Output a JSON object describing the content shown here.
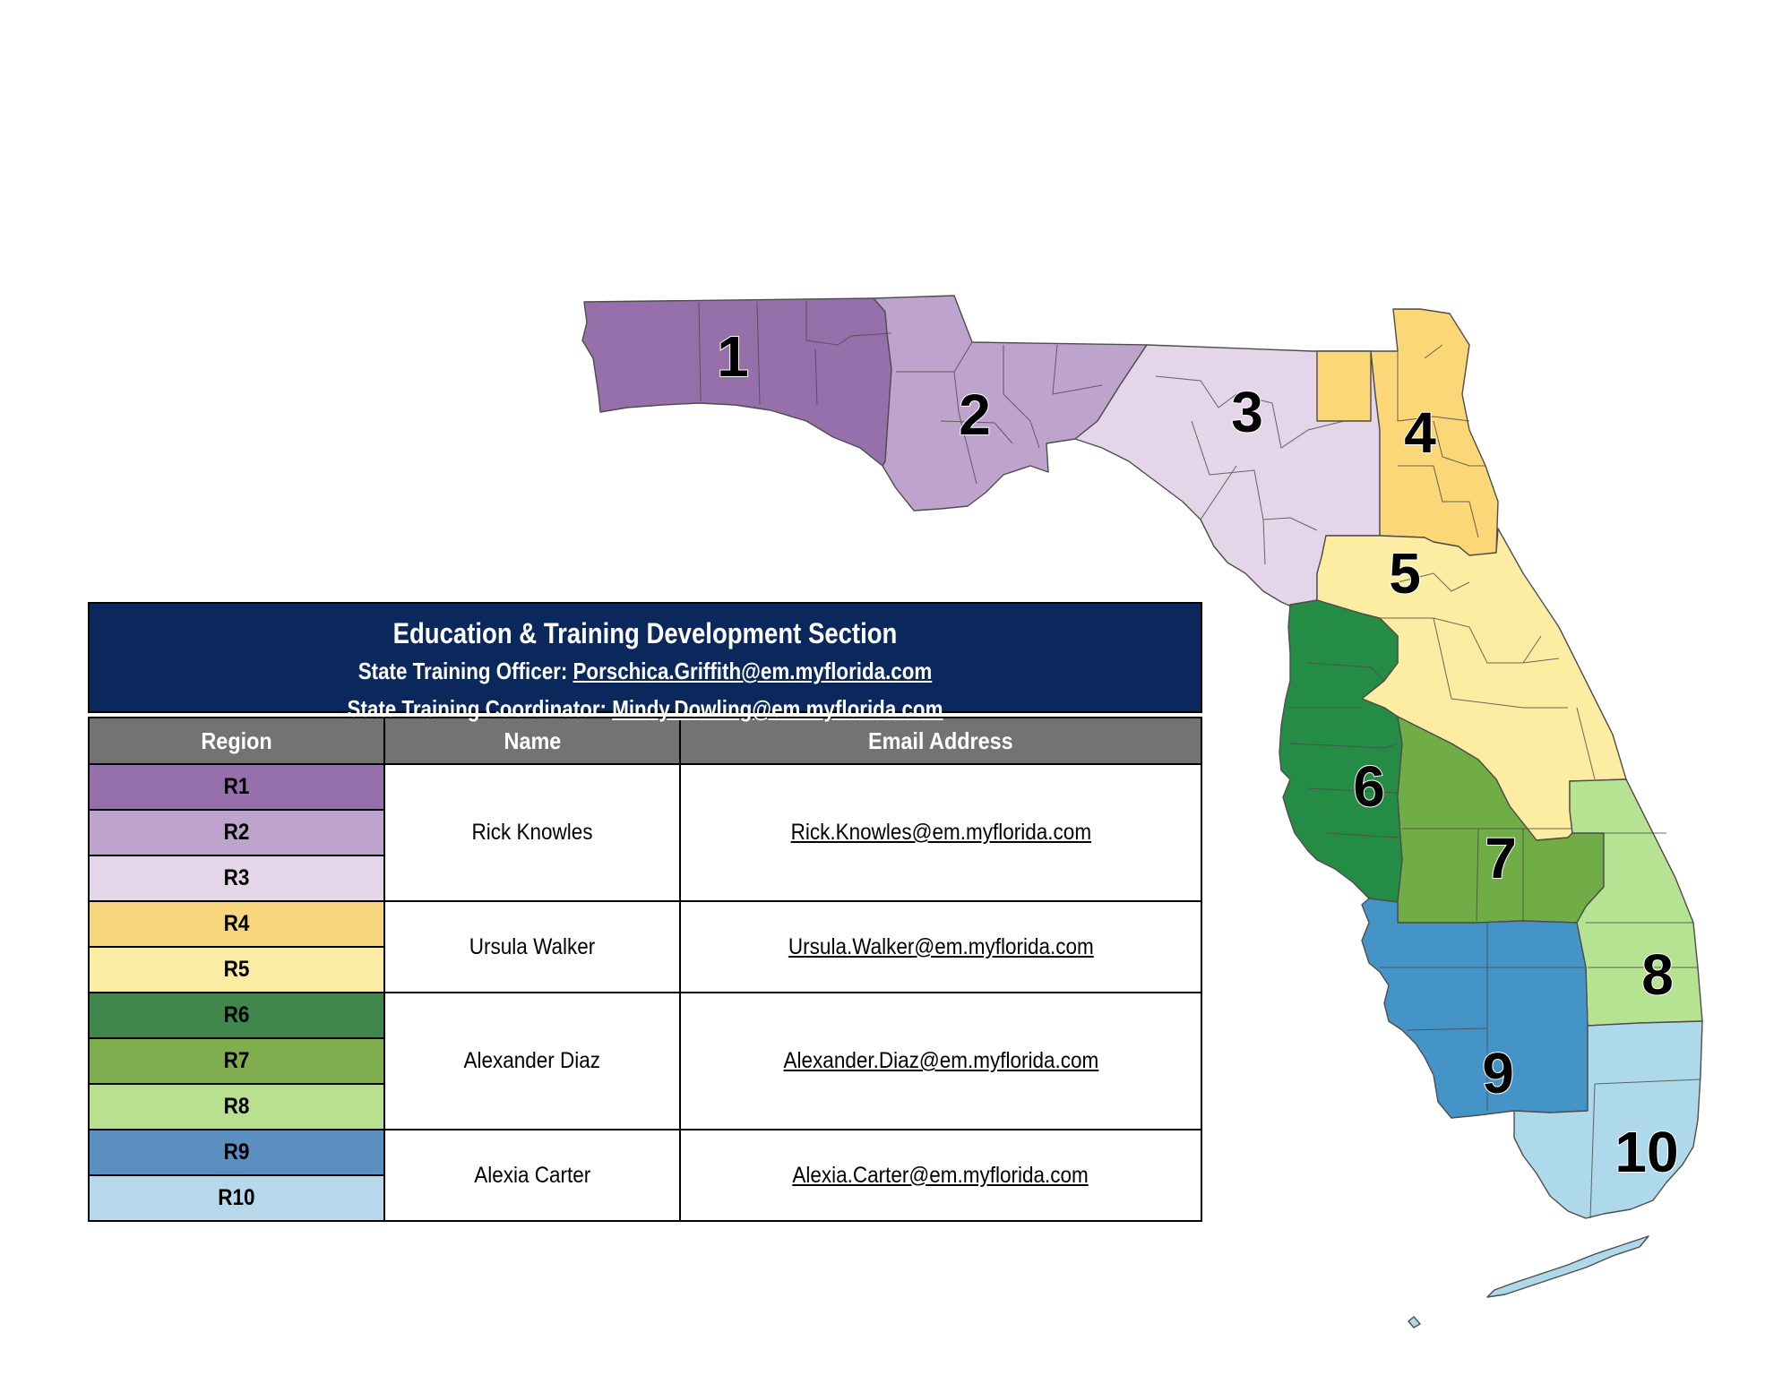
{
  "header": {
    "title": "Education & Training Development Section",
    "officer_label": "State Training Officer: ",
    "officer_email": "Porschica.Griffith@em.myflorida.com",
    "coordinator_label": "State Training Coordinator: ",
    "coordinator_email": "Mindy.Dowling@em.myflorida.com"
  },
  "table": {
    "columns": [
      "Region",
      "Name",
      "Email Address"
    ],
    "regions": [
      {
        "label": "R1",
        "color": "#9570ab"
      },
      {
        "label": "R2",
        "color": "#bea4cd"
      },
      {
        "label": "R3",
        "color": "#e4d6e8"
      },
      {
        "label": "R4",
        "color": "#f7d67e"
      },
      {
        "label": "R5",
        "color": "#fbeca3"
      },
      {
        "label": "R6",
        "color": "#3f874a"
      },
      {
        "label": "R7",
        "color": "#80ae4f"
      },
      {
        "label": "R8",
        "color": "#b8e08f"
      },
      {
        "label": "R9",
        "color": "#5b8fc0"
      },
      {
        "label": "R10",
        "color": "#b6d8ea"
      }
    ],
    "contacts": [
      {
        "name": "Rick Knowles",
        "email": "Rick.Knowles@em.myflorida.com"
      },
      {
        "name": "Ursula Walker",
        "email": "Ursula.Walker@em.myflorida.com"
      },
      {
        "name": "Alexander Diaz",
        "email": "Alexander.Diaz@em.myflorida.com"
      },
      {
        "name": "Alexia Carter",
        "email": "Alexia.Carter@em.myflorida.com"
      }
    ]
  },
  "map": {
    "labels": [
      "1",
      "2",
      "3",
      "4",
      "5",
      "6",
      "7",
      "8",
      "9",
      "10"
    ],
    "colors": {
      "r1": "#9570ab",
      "r2": "#bea4cd",
      "r3": "#e4d6e8",
      "r4": "#fbd778",
      "r5": "#fdeda2",
      "r6": "#258c45",
      "r7": "#70ad47",
      "r8": "#b6e392",
      "r9": "#4594c8",
      "r10": "#aed9ea"
    }
  }
}
